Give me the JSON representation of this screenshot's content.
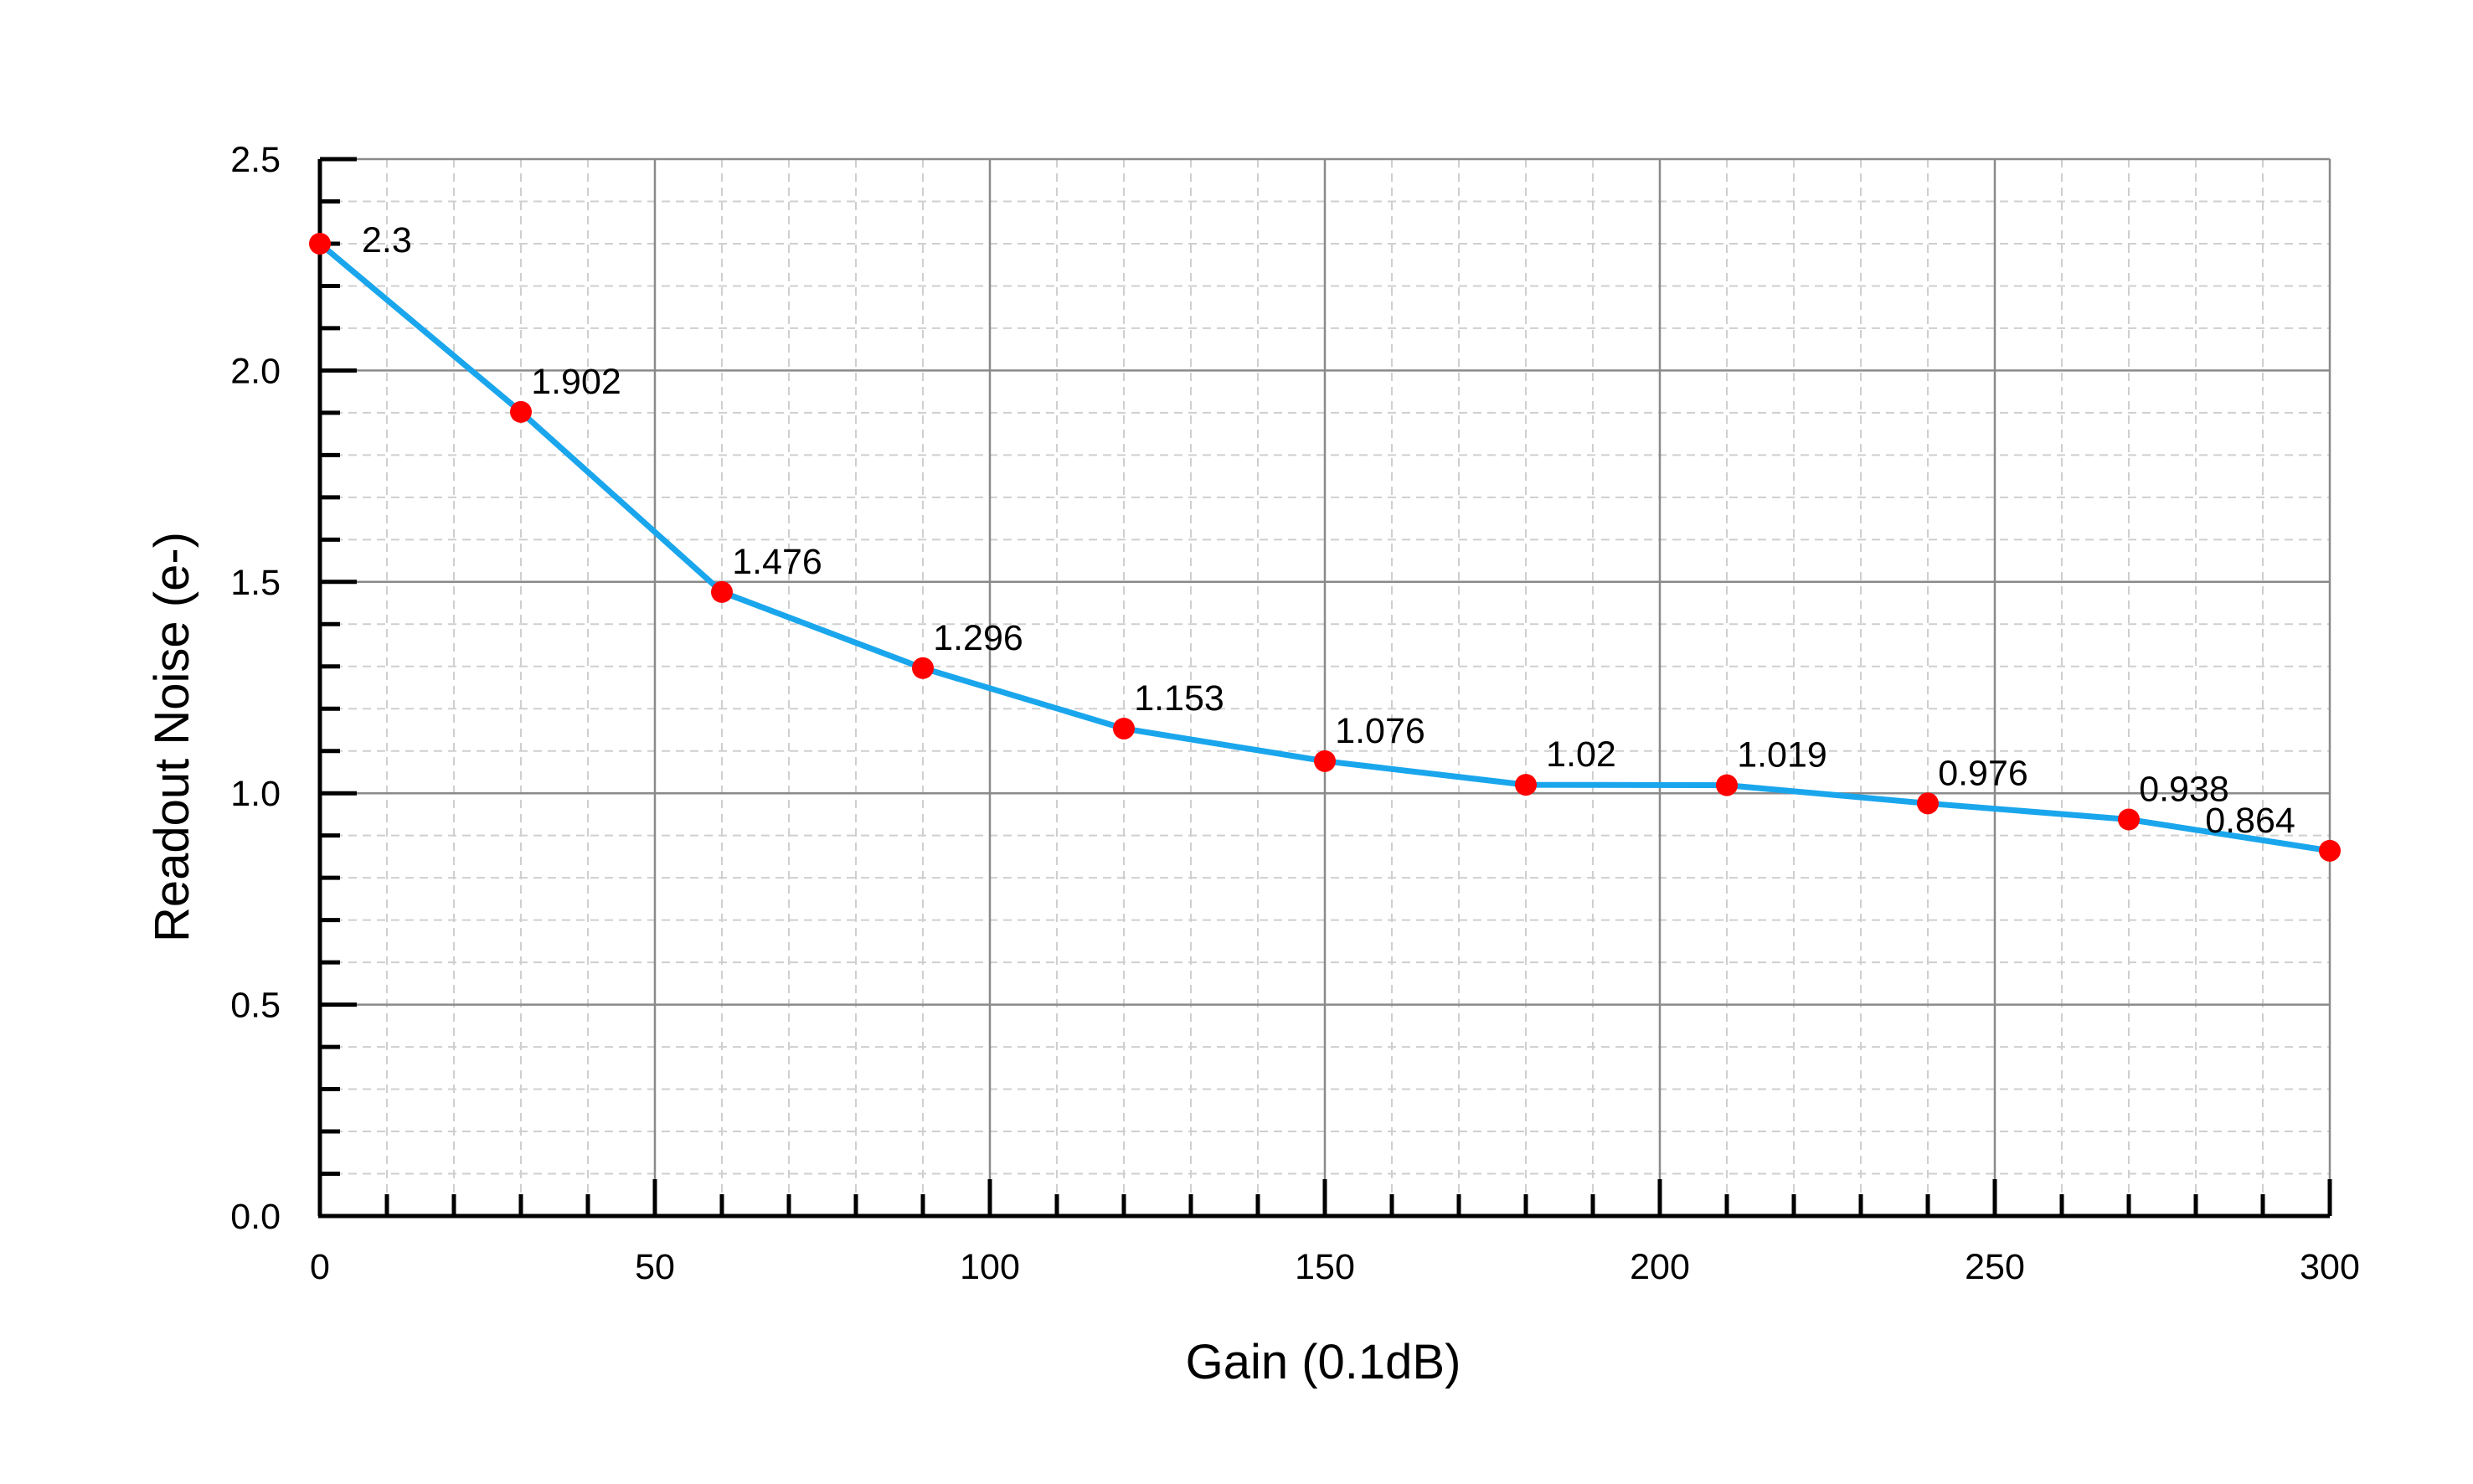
{
  "chart_data": {
    "type": "line",
    "title": "",
    "xlabel": "Gain (0.1dB)",
    "ylabel": "Readout Noise (e-)",
    "xlim": [
      0,
      300
    ],
    "ylim": [
      0,
      2.5
    ],
    "x_ticks": [
      "0",
      "50",
      "100",
      "150",
      "200",
      "250",
      "300"
    ],
    "y_ticks": [
      "0.0",
      "0.5",
      "1.0",
      "1.5",
      "2.0",
      "2.5"
    ],
    "grid": true,
    "legend": "none",
    "series": [
      {
        "x": [
          0,
          30,
          60,
          90,
          120,
          150,
          180,
          210,
          240,
          270,
          300
        ],
        "values": [
          2.3,
          1.902,
          1.476,
          1.296,
          1.153,
          1.076,
          1.02,
          1.019,
          0.976,
          0.938,
          0.864
        ],
        "data_labels": [
          "2.3",
          "1.902",
          "1.476",
          "1.296",
          "1.153",
          "1.076",
          "1.02",
          "1.019",
          "0.976",
          "0.938",
          "0.864"
        ],
        "line_color": "#1aa6ec",
        "marker_color": "#ff0000"
      }
    ]
  }
}
